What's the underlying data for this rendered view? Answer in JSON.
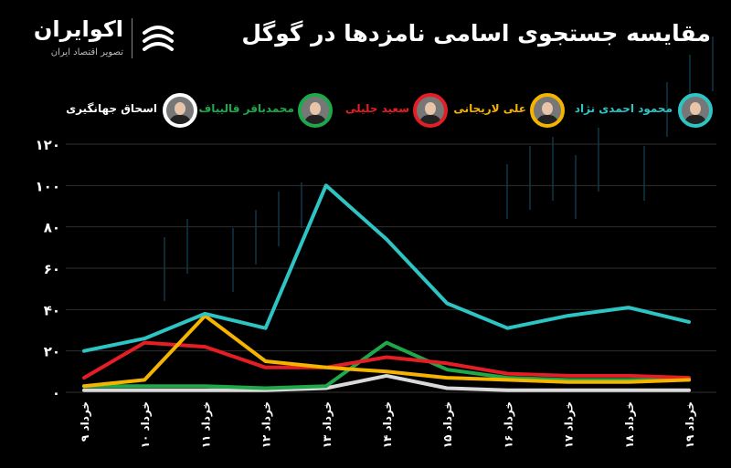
{
  "header": {
    "title": "مقایسه جستجوی اسامی نامزدها در گوگل",
    "brand_name": "اکوایران",
    "brand_tagline": "تصویر اقتصاد ایران"
  },
  "legend": [
    {
      "label": "محمود احمدی نژاد",
      "color": "#2ec4c4"
    },
    {
      "label": "علی لاریجانی",
      "color": "#f5b400"
    },
    {
      "label": "سعید جلیلی",
      "color": "#e31e24"
    },
    {
      "label": "محمدباقر قالیباف",
      "color": "#1fa84a"
    },
    {
      "label": "اسحاق جهانگیری",
      "color": "#d9d9d9"
    }
  ],
  "chart_data": {
    "type": "line",
    "x": [
      "۹ خرداد",
      "۱۰ خرداد",
      "۱۱ خرداد",
      "۱۲ خرداد",
      "۱۳ خرداد",
      "۱۴ خرداد",
      "۱۵ خرداد",
      "۱۶ خرداد",
      "۱۷ خرداد",
      "۱۸ خرداد",
      "۱۹ خرداد"
    ],
    "yticks": [
      "۰",
      "۲۰",
      "۴۰",
      "۶۰",
      "۸۰",
      "۱۰۰",
      "۱۲۰"
    ],
    "ylim": [
      0,
      120
    ],
    "grid": true,
    "series": [
      {
        "name": "محمود احمدی نژاد",
        "color": "#2ec4c4",
        "values": [
          20,
          26,
          38,
          31,
          100,
          74,
          43,
          31,
          37,
          41,
          34
        ]
      },
      {
        "name": "علی لاریجانی",
        "color": "#f5b400",
        "values": [
          3,
          6,
          37,
          15,
          12,
          10,
          7,
          6,
          5,
          5,
          6
        ]
      },
      {
        "name": "سعید جلیلی",
        "color": "#e31e24",
        "values": [
          7,
          24,
          22,
          12,
          12,
          17,
          14,
          9,
          8,
          8,
          7
        ]
      },
      {
        "name": "محمدباقر قالیباف",
        "color": "#1fa84a",
        "values": [
          3,
          3,
          3,
          2,
          3,
          24,
          11,
          7,
          6,
          6,
          6
        ]
      },
      {
        "name": "اسحاق جهانگیری",
        "color": "#d9d9d9",
        "values": [
          1,
          1,
          1,
          1,
          2,
          8,
          2,
          1,
          1,
          1,
          1
        ]
      }
    ]
  }
}
